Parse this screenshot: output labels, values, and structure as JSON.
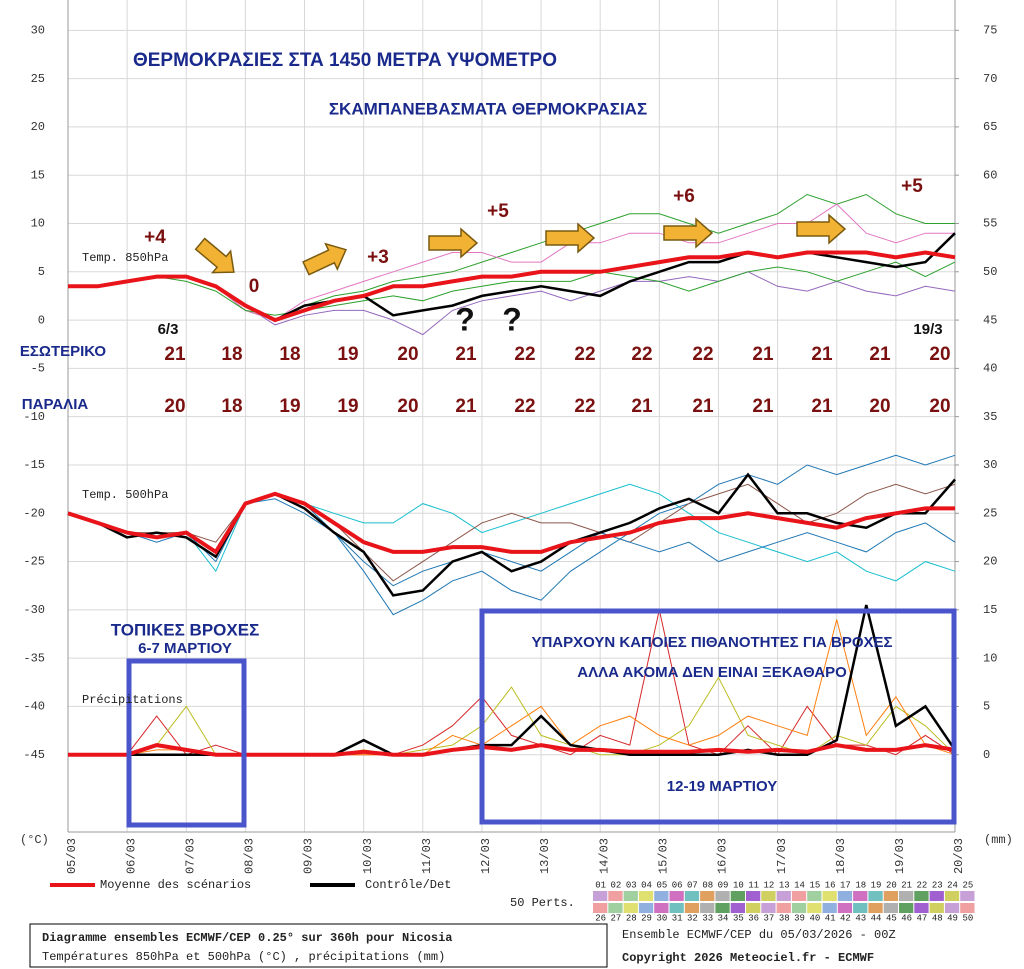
{
  "chart_data": {
    "type": "line",
    "title": "ΘΕΡΜΟΚΡΑΣΙΕΣ ΣΤΑ 1450 ΜΕΤΡΑ ΥΨΟΜΕΤΡΟ",
    "subtitle": "ΣΚΑΜΠΑΝΕΒΑΣΜΑΤΑ ΘΕΡΜΟΚΡΑΣΙΑΣ",
    "ylabel": "(°C)",
    "y2label": "(mm)",
    "grid": true,
    "xlim": [
      0,
      15
    ],
    "xticks": [
      {
        "value": 0,
        "label": "05/03"
      },
      {
        "value": 1,
        "label": "06/03"
      },
      {
        "value": 2,
        "label": "07/03"
      },
      {
        "value": 3,
        "label": "08/03"
      },
      {
        "value": 4,
        "label": "09/03"
      },
      {
        "value": 5,
        "label": "10/03"
      },
      {
        "value": 6,
        "label": "11/03"
      },
      {
        "value": 7,
        "label": "12/03"
      },
      {
        "value": 8,
        "label": "13/03"
      },
      {
        "value": 9,
        "label": "14/03"
      },
      {
        "value": 10,
        "label": "15/03"
      },
      {
        "value": 11,
        "label": "16/03"
      },
      {
        "value": 12,
        "label": "17/03"
      },
      {
        "value": 13,
        "label": "18/03"
      },
      {
        "value": 14,
        "label": "19/03"
      },
      {
        "value": 15,
        "label": "20/03"
      }
    ],
    "ylim": [
      -53,
      32
    ],
    "yticks": [
      -45,
      -40,
      -35,
      -30,
      -25,
      -20,
      -15,
      -10,
      -5,
      0,
      5,
      10,
      15,
      20,
      25,
      30
    ],
    "y2lim": [
      -8,
      77
    ],
    "y2ticks": [
      0,
      5,
      10,
      15,
      20,
      25,
      30,
      35,
      40,
      45,
      50,
      55,
      60,
      65,
      70,
      75
    ],
    "x": [
      0,
      0.5,
      1,
      1.5,
      2,
      2.5,
      3,
      3.5,
      4,
      4.5,
      5,
      5.5,
      6,
      6.5,
      7,
      7.5,
      8,
      8.5,
      9,
      9.5,
      10,
      10.5,
      11,
      11.5,
      12,
      12.5,
      13,
      13.5,
      14,
      14.5,
      15
    ],
    "legend": [
      {
        "name": "Moyenne des scénarios",
        "color": "#e8141a"
      },
      {
        "name": "Contrôle/Det",
        "color": "#000000"
      }
    ],
    "panels": [
      {
        "label": "Temp. 850hPa",
        "axis": "y",
        "mean": [
          3.5,
          3.5,
          4,
          4.5,
          4.5,
          3.5,
          1.5,
          0,
          1,
          2,
          2.5,
          3.5,
          3.5,
          4,
          4.5,
          4.5,
          5,
          5,
          5,
          5.5,
          6,
          6.5,
          6.5,
          7,
          6.5,
          7,
          7,
          7,
          6.5,
          7,
          6.5
        ],
        "control": [
          3.5,
          3.5,
          4,
          4.5,
          4.5,
          3.5,
          1.5,
          0,
          1.5,
          2,
          2.5,
          0.5,
          1,
          1.5,
          2.5,
          3,
          3.5,
          3,
          2.5,
          4,
          5,
          6,
          6,
          7,
          6.5,
          7,
          6.5,
          6,
          5.5,
          6,
          9
        ],
        "perturbations": [
          [
            3.5,
            3.5,
            4,
            4.5,
            4.5,
            3.5,
            1,
            0,
            1.5,
            2.5,
            3,
            4,
            4.5,
            5,
            6,
            7,
            8,
            9,
            10,
            11,
            11,
            10,
            9,
            10,
            11,
            13,
            12,
            13,
            11,
            10,
            10
          ],
          [
            3.5,
            3.5,
            4,
            4.5,
            4.5,
            3.5,
            1.5,
            -0.5,
            0.5,
            1,
            1,
            0,
            -1.5,
            1,
            2,
            2.5,
            3,
            2,
            3,
            4,
            4,
            4.5,
            4,
            5,
            3.5,
            3,
            4,
            3,
            2.5,
            3.5,
            3
          ],
          [
            3.5,
            3.5,
            4,
            4.5,
            4.5,
            3.5,
            1,
            0,
            2,
            3,
            4,
            5,
            6,
            7,
            7,
            6,
            6,
            8,
            8,
            9,
            9,
            8,
            8,
            9,
            10,
            10,
            12,
            9,
            8,
            9,
            9
          ],
          [
            3.5,
            3.5,
            4,
            4.5,
            4,
            3,
            1,
            0.5,
            1,
            1.5,
            2,
            2.5,
            2,
            3,
            3.5,
            4,
            4,
            4,
            5,
            4.5,
            4,
            3,
            4,
            5,
            5.5,
            5,
            4,
            5,
            6,
            4.5,
            6
          ]
        ]
      },
      {
        "label": "Temp. 500hPa",
        "axis": "y",
        "mean": [
          -20,
          -21,
          -22,
          -22.5,
          -22,
          -24,
          -19,
          -18,
          -19,
          -21,
          -23,
          -24,
          -24,
          -23.5,
          -23.5,
          -24,
          -24,
          -23,
          -22.5,
          -22,
          -21,
          -20.5,
          -20.5,
          -20,
          -20.5,
          -21,
          -21.5,
          -20.5,
          -20,
          -19.5,
          -19.5
        ],
        "control": [
          -20,
          -21,
          -22.5,
          -22,
          -22.5,
          -24.5,
          -19,
          -18,
          -19.5,
          -22,
          -24,
          -28.5,
          -28,
          -25,
          -24,
          -26,
          -25,
          -23,
          -22,
          -21,
          -19.5,
          -18.5,
          -20,
          -16,
          -20,
          -20,
          -21,
          -21.5,
          -20,
          -20,
          -16.5
        ],
        "perturbations": [
          [
            -20,
            -21,
            -22,
            -22.5,
            -22,
            -25,
            -19,
            -18,
            -19,
            -22,
            -26,
            -30.5,
            -29,
            -27,
            -26,
            -28,
            -29,
            -26,
            -24,
            -22,
            -20,
            -19,
            -17,
            -16,
            -17,
            -15,
            -16,
            -15,
            -14,
            -15,
            -14
          ],
          [
            -20,
            -21,
            -22,
            -22.5,
            -22,
            -26,
            -19,
            -18,
            -19,
            -20,
            -21,
            -21,
            -19,
            -20,
            -22,
            -21,
            -20,
            -19,
            -18,
            -17,
            -18,
            -20,
            -22,
            -23,
            -24,
            -25,
            -24,
            -26,
            -27,
            -25,
            -26
          ],
          [
            -20,
            -21,
            -22,
            -22,
            -22,
            -23,
            -19,
            -18,
            -19,
            -21,
            -24,
            -27,
            -25,
            -23,
            -21,
            -20,
            -21,
            -21,
            -22,
            -23,
            -21,
            -19,
            -18,
            -17,
            -19,
            -21,
            -20,
            -18,
            -17,
            -18,
            -17
          ],
          [
            -20,
            -21,
            -22,
            -23,
            -22,
            -24,
            -19,
            -18.5,
            -20,
            -22,
            -25,
            -27.5,
            -26,
            -25,
            -24,
            -25,
            -26,
            -24,
            -22,
            -23,
            -24,
            -23,
            -25,
            -24,
            -23,
            -22,
            -23,
            -24,
            -22,
            -21,
            -23
          ]
        ]
      },
      {
        "label": "Précipitations",
        "axis": "y2",
        "mean": [
          0,
          0,
          0,
          1,
          0.5,
          0,
          0,
          0,
          0,
          0,
          0.3,
          0,
          0,
          0.5,
          0.8,
          0.5,
          1,
          0.5,
          0.5,
          0.3,
          0.3,
          0.3,
          0.5,
          0.3,
          0.5,
          0.3,
          1,
          0.5,
          0.5,
          1,
          0.5
        ],
        "control": [
          0,
          0,
          0,
          0,
          0,
          0,
          0,
          0,
          0,
          0,
          1.5,
          0,
          0,
          0.5,
          1,
          1,
          4,
          1,
          0.5,
          0,
          0,
          0,
          0,
          0.5,
          0,
          0,
          1.5,
          15.5,
          3,
          5,
          0.5
        ],
        "perturbations": [
          [
            0,
            0,
            0,
            4,
            0,
            1,
            0,
            0,
            0,
            0,
            0,
            0,
            1,
            3,
            6,
            2,
            1,
            0,
            2,
            1,
            15,
            1,
            0,
            3,
            0,
            5,
            1,
            1,
            0,
            2,
            0
          ],
          [
            0,
            0,
            0,
            1,
            5,
            0,
            0,
            0,
            0,
            0,
            0.5,
            0,
            0.5,
            1,
            3,
            7,
            2,
            1,
            0,
            0,
            1,
            3,
            8,
            2,
            1,
            0,
            2,
            1,
            5,
            3,
            0
          ],
          [
            0,
            0,
            0,
            0.5,
            0.5,
            0,
            0,
            0,
            0,
            0,
            0,
            0,
            0,
            2,
            1,
            3,
            5,
            1,
            3,
            4,
            2,
            1,
            2,
            4,
            3,
            2,
            14,
            2,
            6,
            1,
            0
          ]
        ]
      }
    ],
    "changes": [
      "+4",
      "0",
      "+3",
      "+5",
      "+6",
      "+5"
    ],
    "questions": [
      "?",
      "?"
    ],
    "date_marks": [
      "6/3",
      "19/3"
    ],
    "forecast_table": [
      {
        "label": "ΕΣΩΤΕΡΙΚΟ",
        "values": [
          21,
          18,
          18,
          19,
          20,
          21,
          22,
          22,
          22,
          22,
          21,
          21,
          21,
          20
        ]
      },
      {
        "label": "ΠΑΡΑΛΙΑ",
        "values": [
          20,
          18,
          19,
          19,
          20,
          21,
          22,
          22,
          21,
          21,
          21,
          21,
          20,
          20
        ]
      }
    ],
    "rain_boxes": [
      {
        "lines": [
          "ΤΟΠΙΚΕΣ ΒΡΟΧΕΣ",
          "6-7 ΜΑΡΤΙΟΥ"
        ]
      },
      {
        "lines": [
          "ΥΠΑΡΧΟΥΝ ΚΑΠΟΙΕΣ ΠΙΘΑΝΟΤΗΤΕΣ ΓΙΑ ΒΡΟΧΕΣ",
          "ΑΛΛΑ ΑΚΟΜΑ ΔΕΝ ΕΙΝΑΙ ΞΕΚΑΘΑΡΟ",
          "12-19 ΜΑΡΤΙΟΥ"
        ]
      }
    ],
    "members_label": "50 Perts.",
    "members": [
      "01",
      "02",
      "03",
      "04",
      "05",
      "06",
      "07",
      "08",
      "09",
      "10",
      "11",
      "12",
      "13",
      "14",
      "15",
      "16",
      "17",
      "18",
      "19",
      "20",
      "21",
      "22",
      "23",
      "24",
      "25",
      "26",
      "27",
      "28",
      "29",
      "30",
      "31",
      "32",
      "33",
      "34",
      "35",
      "36",
      "37",
      "38",
      "39",
      "40",
      "41",
      "42",
      "43",
      "44",
      "45",
      "46",
      "47",
      "48",
      "49",
      "50"
    ],
    "footer": {
      "title": "Diagramme ensembles ECMWF/CEP 0.25° sur 360h pour Nicosia",
      "subtitle": "Températures 850hPa et 500hPa (°C) , précipitations (mm)",
      "run": "Ensemble ECMWF/CEP du 05/03/2026 - 00Z",
      "copyright": "Copyright 2026 Meteociel.fr - ECMWF"
    }
  }
}
